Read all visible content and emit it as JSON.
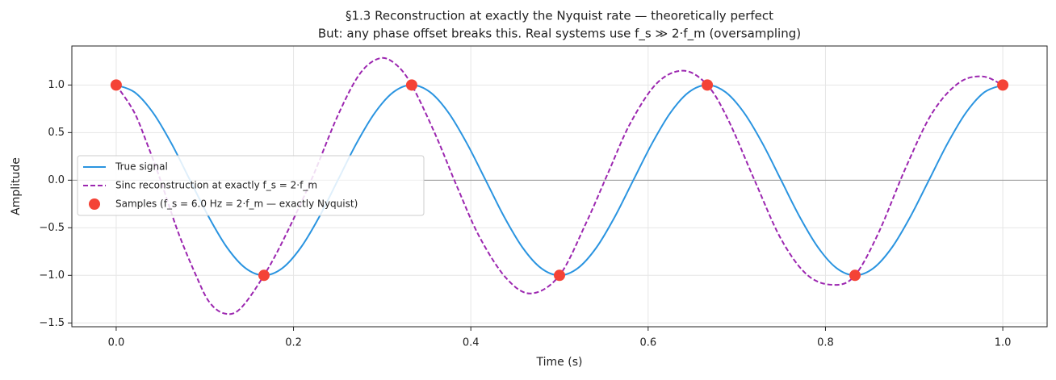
{
  "chart_data": {
    "type": "line",
    "title": "§1.3 Reconstruction at exactly the Nyquist rate — theoretically perfect",
    "subtitle": "But: any phase offset breaks this. Real systems use f_s ≫ 2·f_m (oversampling)",
    "x_label": "Time (s)",
    "y_label": "Amplitude",
    "xlim": [
      -0.05,
      1.05
    ],
    "ylim": [
      -1.54,
      1.41
    ],
    "xticks": [
      {
        "value": 0,
        "label": "0.0"
      },
      0.2,
      0.4,
      0.6,
      0.8,
      {
        "value": 1,
        "label": "1.0"
      }
    ],
    "yticks": [
      {
        "value": -1.5,
        "label": "−1.5"
      },
      {
        "value": -1,
        "label": "−1.0"
      },
      {
        "value": -0.5,
        "label": "−0.5"
      },
      {
        "value": 0,
        "label": "0.0"
      },
      0.5,
      {
        "value": 1,
        "label": "1.0"
      }
    ],
    "grid": true,
    "hline": 0,
    "legend": "center left",
    "series": [
      {
        "name": "True signal",
        "color": "#2a94e0",
        "style": "solid",
        "x": [
          0,
          0.0208,
          0.0417,
          0.0625,
          0.0833,
          0.1042,
          0.125,
          0.1458,
          0.1667,
          0.1875,
          0.2083,
          0.2292,
          0.25,
          0.2708,
          0.2917,
          0.3125,
          0.3333,
          0.3542,
          0.375,
          0.3958,
          0.4167,
          0.4375,
          0.4583,
          0.4792,
          0.5,
          0.5208,
          0.5417,
          0.5625,
          0.5833,
          0.6042,
          0.625,
          0.6458,
          0.6667,
          0.6875,
          0.7083,
          0.7292,
          0.75,
          0.7708,
          0.7917,
          0.8125,
          0.8333,
          0.8542,
          0.875,
          0.8958,
          0.9167,
          0.9375,
          0.9583,
          0.9792,
          1.0
        ],
        "values": [
          1,
          0.9239,
          0.7071,
          0.3827,
          0,
          -0.3827,
          -0.7071,
          -0.9239,
          -1,
          -0.9239,
          -0.7071,
          -0.3827,
          0,
          0.3827,
          0.7071,
          0.9239,
          1,
          0.9239,
          0.7071,
          0.3827,
          0,
          -0.3827,
          -0.7071,
          -0.9239,
          -1,
          -0.9239,
          -0.7071,
          -0.3827,
          0,
          0.3827,
          0.7071,
          0.9239,
          1,
          0.9239,
          0.7071,
          0.3827,
          0,
          -0.3827,
          -0.7071,
          -0.9239,
          -1,
          -0.9239,
          -0.7071,
          -0.3827,
          0,
          0.3827,
          0.7071,
          0.9239,
          1
        ]
      },
      {
        "name": "Sinc reconstruction at exactly f_s = 2·f_m",
        "color": "#9c27b0",
        "style": "dashed",
        "x": [
          0,
          0.02,
          0.035,
          0.05,
          0.07,
          0.09,
          0.105,
          0.122,
          0.14,
          0.1667,
          0.19,
          0.22,
          0.25,
          0.275,
          0.297,
          0.315,
          0.3333,
          0.36,
          0.385,
          0.41,
          0.44,
          0.468,
          0.5,
          0.53,
          0.555,
          0.58,
          0.61,
          0.64,
          0.6667,
          0.69,
          0.72,
          0.75,
          0.78,
          0.81,
          0.8333,
          0.86,
          0.89,
          0.92,
          0.95,
          0.977,
          1.0
        ],
        "values": [
          1.0,
          0.72,
          0.38,
          0.0,
          -0.55,
          -1.0,
          -1.28,
          -1.4,
          -1.35,
          -1.0,
          -0.6,
          0.0,
          0.68,
          1.12,
          1.28,
          1.22,
          1.0,
          0.48,
          -0.08,
          -0.6,
          -1.03,
          -1.19,
          -1.0,
          -0.45,
          0.08,
          0.6,
          1.02,
          1.15,
          1.0,
          0.64,
          0.0,
          -0.62,
          -1.0,
          -1.1,
          -1.0,
          -0.55,
          0.12,
          0.7,
          1.02,
          1.09,
          1.0
        ]
      },
      {
        "name": "Samples (f_s = 6.0 Hz = 2·f_m — exactly Nyquist)",
        "color": "#f44336",
        "style": "points",
        "x": [
          0,
          0.1667,
          0.3333,
          0.5,
          0.6667,
          0.8333,
          1.0
        ],
        "values": [
          1,
          -1,
          1,
          -1,
          1,
          -1,
          1
        ]
      }
    ]
  }
}
